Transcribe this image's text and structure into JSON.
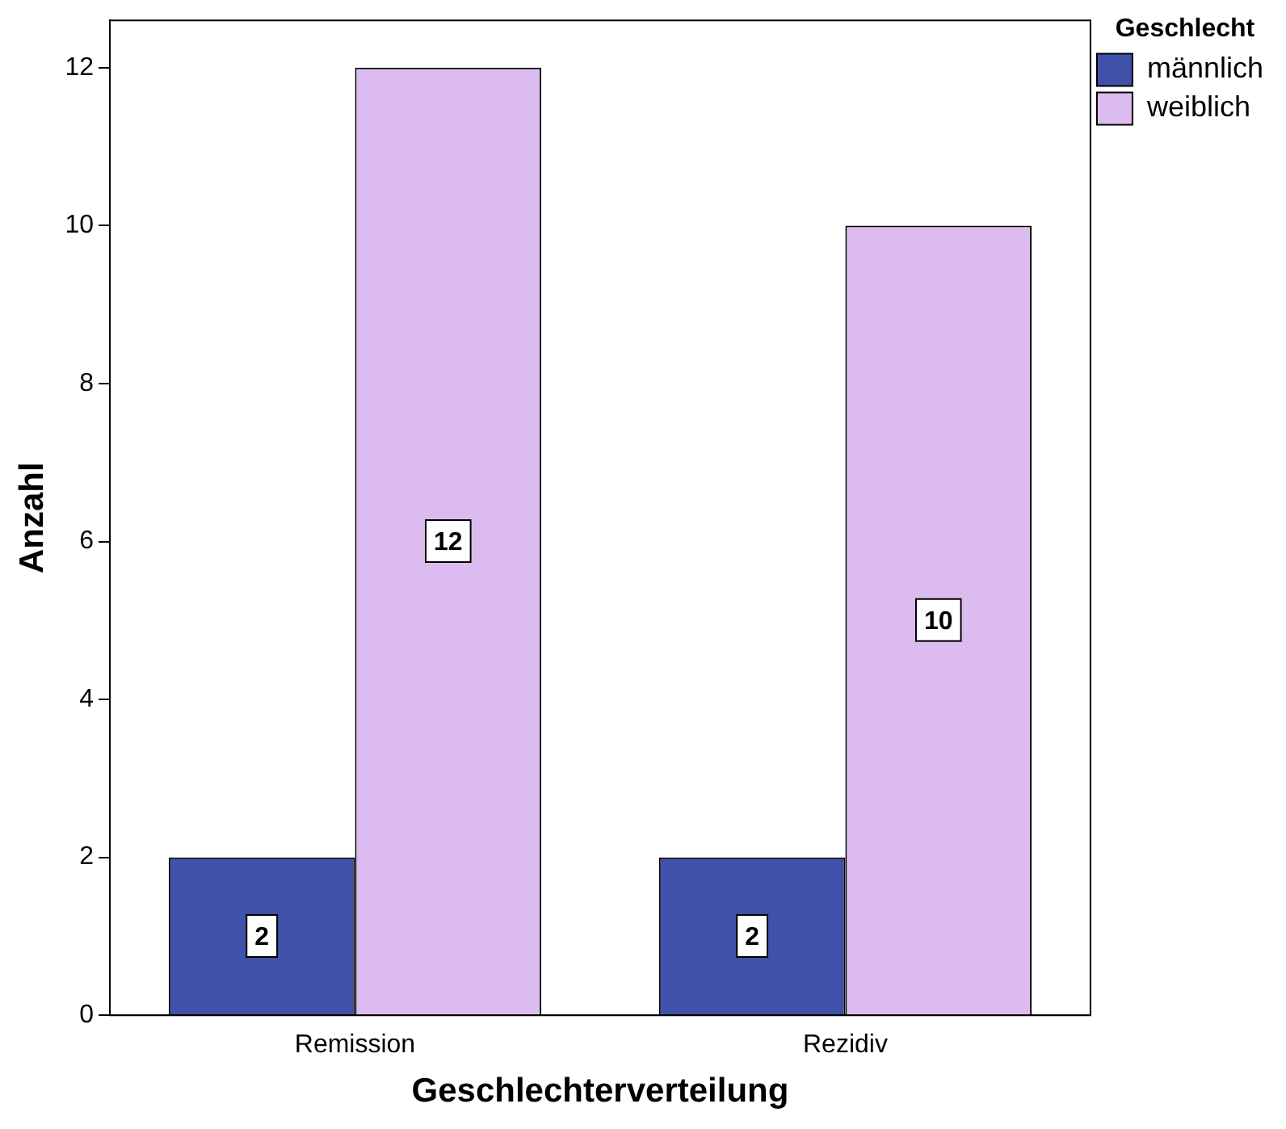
{
  "chart_data": {
    "type": "bar",
    "xlabel": "Geschlechterverteilung",
    "ylabel": "Anzahl",
    "legend_title": "Geschlecht",
    "categories": [
      "Remission",
      "Rezidiv"
    ],
    "series": [
      {
        "name": "männlich",
        "color": "#3f51a8",
        "values": [
          2,
          2
        ]
      },
      {
        "name": "weiblich",
        "color": "#dcbcf0",
        "values": [
          12,
          10
        ]
      }
    ],
    "ylim": [
      0,
      12.6
    ],
    "yticks": [
      0,
      2,
      4,
      6,
      8,
      10,
      12
    ],
    "grid": false,
    "legend": "top right",
    "data_labels": true
  }
}
